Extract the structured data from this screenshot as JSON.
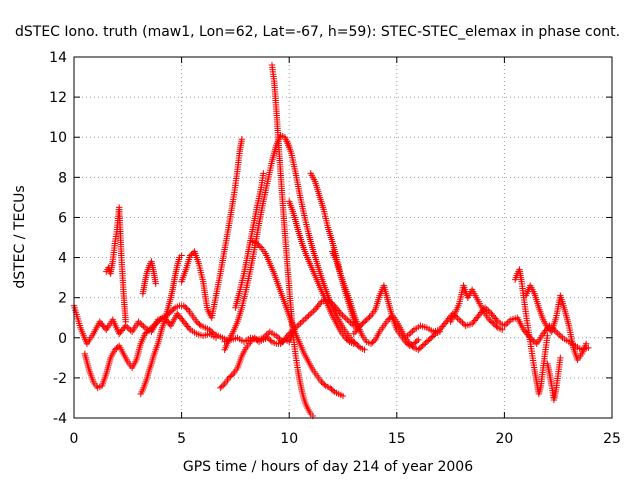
{
  "chart_data": {
    "type": "scatter",
    "title": "dSTEC Iono. truth (maw1, Lon=62, Lat=-67, h=59): STEC-STEC_elemax in phase cont.",
    "xlabel": "GPS time / hours of day 214 of year 2006",
    "ylabel": "dSTEC  / TECUs",
    "xlim": [
      0,
      25
    ],
    "ylim": [
      -4,
      14
    ],
    "xticks": [
      0,
      5,
      10,
      15,
      20,
      25
    ],
    "yticks": [
      -4,
      -2,
      0,
      2,
      4,
      6,
      8,
      10,
      12,
      14
    ],
    "grid": true,
    "marker": "+",
    "series_color": "#ff0000",
    "series": [
      {
        "x": [
          0.0,
          0.3,
          0.6,
          0.9,
          1.2,
          1.5,
          1.8,
          2.1,
          2.4,
          2.7,
          3.0,
          3.3,
          3.6,
          3.9,
          4.2,
          4.5,
          4.8,
          5.1,
          5.4,
          5.7,
          6.0,
          6.3,
          6.6
        ],
        "y": [
          1.6,
          0.5,
          -0.3,
          0.2,
          0.8,
          0.4,
          0.9,
          0.2,
          0.6,
          0.3,
          0.8,
          0.5,
          0.3,
          0.9,
          1.0,
          0.6,
          1.2,
          0.8,
          0.4,
          0.2,
          0.1,
          0.2,
          0.0
        ]
      },
      {
        "x": [
          0.5,
          0.7,
          0.9,
          1.1,
          1.3,
          1.5,
          1.7,
          1.9,
          2.1,
          2.3,
          2.5,
          2.7,
          2.9,
          3.1,
          3.3,
          3.5,
          3.7,
          3.9,
          4.1,
          4.3,
          4.5,
          4.7,
          4.9,
          5.1,
          5.3,
          5.5,
          5.7,
          5.9,
          6.1,
          6.3,
          6.5,
          6.7,
          6.9,
          7.1
        ],
        "y": [
          -0.8,
          -1.6,
          -2.2,
          -2.5,
          -2.4,
          -1.8,
          -1.0,
          -0.6,
          -0.4,
          -0.8,
          -1.2,
          -1.5,
          -1.1,
          -0.3,
          0.2,
          0.4,
          0.6,
          0.8,
          1.0,
          1.1,
          1.3,
          1.5,
          1.6,
          1.6,
          1.4,
          1.1,
          0.8,
          0.6,
          0.5,
          0.4,
          0.2,
          0.1,
          0.0,
          -0.1
        ]
      },
      {
        "x": [
          1.5,
          1.6,
          1.7,
          1.8,
          1.9,
          2.0,
          2.1,
          2.2,
          2.3,
          2.4
        ],
        "y": [
          3.3,
          3.5,
          3.2,
          3.8,
          4.7,
          5.4,
          6.5,
          4.1,
          2.3,
          0.8
        ]
      },
      {
        "x": [
          3.1,
          3.2,
          3.3,
          3.4,
          3.5,
          3.6,
          3.7,
          3.8,
          3.9,
          4.0,
          4.1,
          4.2,
          4.3,
          4.4,
          4.5,
          4.6,
          4.7,
          4.8,
          4.9,
          5.0
        ],
        "y": [
          -2.8,
          -2.6,
          -2.3,
          -2.0,
          -1.6,
          -1.3,
          -0.9,
          -0.6,
          -0.3,
          0.1,
          0.5,
          0.8,
          1.2,
          1.6,
          2.0,
          2.5,
          3.1,
          3.6,
          4.0,
          4.1
        ]
      },
      {
        "x": [
          3.2,
          3.3,
          3.4,
          3.5,
          3.6,
          3.7,
          3.8
        ],
        "y": [
          2.2,
          2.8,
          3.3,
          3.6,
          3.8,
          3.3,
          2.7
        ]
      },
      {
        "x": [
          5.0,
          5.2,
          5.4,
          5.6,
          5.8,
          6.0,
          6.2,
          6.4,
          6.6,
          6.8,
          7.0,
          7.2,
          7.4,
          7.5,
          7.6,
          7.7,
          7.8
        ],
        "y": [
          2.8,
          3.4,
          4.1,
          4.3,
          3.7,
          2.8,
          1.4,
          1.0,
          2.1,
          3.2,
          4.4,
          5.6,
          6.9,
          7.6,
          8.4,
          9.3,
          9.9
        ]
      },
      {
        "x": [
          6.8,
          7.0,
          7.2,
          7.4,
          7.6,
          7.8,
          8.0,
          8.2,
          8.4,
          8.6,
          8.8,
          9.0,
          9.2,
          9.4,
          9.6,
          9.8,
          10.0,
          10.2
        ],
        "y": [
          -2.5,
          -2.3,
          -2.0,
          -1.8,
          -1.5,
          -0.9,
          -0.5,
          -0.2,
          0.0,
          -0.2,
          -0.1,
          0.0,
          -0.2,
          -0.3,
          -0.3,
          -0.1,
          -0.2,
          0.3
        ]
      },
      {
        "x": [
          7.0,
          7.2,
          7.4,
          7.6,
          7.8,
          8.0,
          8.2,
          8.4,
          8.6,
          8.8,
          9.0,
          9.2,
          9.4,
          9.6,
          9.8,
          10.0
        ],
        "y": [
          -0.6,
          -0.1,
          0.3,
          0.8,
          1.5,
          2.4,
          3.4,
          4.5,
          5.7,
          6.8,
          7.8,
          8.8,
          9.6,
          10.1,
          10.0,
          9.5
        ]
      },
      {
        "x": [
          7.0,
          7.3,
          7.6,
          7.9,
          8.2,
          8.5,
          8.8,
          9.1,
          9.4,
          9.7,
          10.0,
          10.3,
          10.6,
          10.9,
          11.2,
          11.5,
          11.8,
          12.1,
          12.4,
          12.7,
          13.0
        ],
        "y": [
          -0.2,
          -0.1,
          0.0,
          -0.2,
          0.0,
          -0.1,
          0.0,
          0.3,
          0.1,
          -0.2,
          0.2,
          0.5,
          0.8,
          1.1,
          1.4,
          1.8,
          1.9,
          1.6,
          1.2,
          0.9,
          0.6
        ]
      },
      {
        "x": [
          7.5,
          7.7,
          7.9,
          8.1,
          8.3,
          8.5,
          8.7,
          8.8
        ],
        "y": [
          1.5,
          2.3,
          3.2,
          4.3,
          5.4,
          6.5,
          7.5,
          8.2
        ]
      },
      {
        "x": [
          8.3,
          8.5,
          8.7,
          8.9,
          9.1,
          9.3,
          9.5,
          9.7,
          9.9,
          10.1,
          10.3,
          10.5,
          10.7,
          10.9,
          11.1,
          11.3,
          11.5,
          11.7,
          11.9,
          12.1,
          12.3,
          12.5
        ],
        "y": [
          4.8,
          4.7,
          4.5,
          4.2,
          3.7,
          3.2,
          2.6,
          2.0,
          1.4,
          0.8,
          0.2,
          -0.3,
          -0.8,
          -1.2,
          -1.6,
          -1.9,
          -2.2,
          -2.4,
          -2.5,
          -2.7,
          -2.8,
          -2.9
        ]
      },
      {
        "x": [
          9.2,
          9.3,
          9.4,
          9.5,
          9.6,
          9.7,
          9.8,
          9.9,
          10.0,
          10.1,
          10.2,
          10.3,
          10.4,
          10.5,
          10.6,
          10.7,
          10.8,
          10.9,
          11.0,
          11.1
        ],
        "y": [
          13.6,
          12.8,
          11.4,
          9.8,
          8.2,
          6.7,
          5.2,
          3.8,
          2.5,
          1.2,
          0.0,
          -0.9,
          -1.6,
          -2.2,
          -2.7,
          -3.1,
          -3.4,
          -3.6,
          -3.8,
          -3.9
        ]
      },
      {
        "x": [
          9.9,
          10.1,
          10.3,
          10.5,
          10.7,
          10.9,
          11.1,
          11.3,
          11.5,
          11.7,
          11.9,
          12.1,
          12.3,
          12.5,
          12.7,
          12.9,
          13.1,
          13.3,
          13.5
        ],
        "y": [
          9.8,
          9.2,
          8.2,
          7.1,
          6.1,
          5.2,
          4.4,
          3.7,
          3.0,
          2.4,
          1.8,
          1.3,
          0.9,
          0.5,
          0.2,
          -0.1,
          -0.3,
          -0.5,
          -0.6
        ]
      },
      {
        "x": [
          10.0,
          10.2,
          10.4,
          10.6,
          10.8,
          11.0,
          11.2,
          11.4,
          11.6,
          11.8,
          12.0,
          12.2,
          12.4,
          12.6,
          12.8,
          13.0
        ],
        "y": [
          6.8,
          6.2,
          5.4,
          4.7,
          4.1,
          3.6,
          3.1,
          2.6,
          2.1,
          1.6,
          1.1,
          0.7,
          0.3,
          0.0,
          -0.2,
          -0.3
        ]
      },
      {
        "x": [
          11.0,
          11.2,
          11.4,
          11.6,
          11.8,
          12.0,
          12.2,
          12.4,
          12.6,
          12.8,
          13.0,
          13.2
        ],
        "y": [
          8.2,
          7.8,
          7.1,
          6.4,
          5.5,
          4.8,
          4.0,
          3.1,
          2.3,
          1.6,
          0.9,
          0.4
        ]
      },
      {
        "x": [
          12.0,
          12.2,
          12.4,
          12.6,
          12.8,
          13.0,
          13.2,
          13.4,
          13.6,
          13.8,
          14.0,
          14.2,
          14.4,
          14.6,
          14.8,
          15.0,
          15.2,
          15.4,
          15.6,
          15.8,
          16.0,
          16.2,
          16.4,
          16.6,
          16.8,
          17.0
        ],
        "y": [
          4.3,
          3.8,
          3.1,
          2.5,
          1.9,
          1.2,
          0.6,
          0.1,
          -0.2,
          -0.3,
          -0.1,
          0.3,
          0.6,
          0.9,
          1.1,
          0.8,
          0.4,
          0.0,
          -0.3,
          -0.5,
          -0.6,
          -0.4,
          -0.2,
          0.0,
          0.2,
          0.3
        ]
      },
      {
        "x": [
          13.0,
          13.2,
          13.4,
          13.6,
          13.8,
          14.0,
          14.2,
          14.4,
          14.6,
          14.8,
          15.0,
          15.2,
          15.4,
          15.6,
          15.8,
          16.0
        ],
        "y": [
          0.2,
          0.5,
          0.7,
          0.9,
          1.1,
          1.4,
          2.1,
          2.6,
          1.8,
          1.0,
          0.4,
          0.1,
          -0.2,
          -0.4,
          -0.3,
          -0.1
        ]
      },
      {
        "x": [
          15.5,
          15.8,
          16.1,
          16.4,
          16.7,
          17.0,
          17.3,
          17.6,
          17.9,
          18.2,
          18.5,
          18.8,
          19.1,
          19.4,
          19.7,
          20.0,
          20.3,
          20.6,
          20.9,
          21.2,
          21.5,
          21.8,
          22.1,
          22.4,
          22.7,
          23.0,
          23.3,
          23.6,
          23.9
        ],
        "y": [
          0.1,
          0.4,
          0.6,
          0.5,
          0.3,
          0.4,
          0.8,
          1.2,
          0.9,
          0.6,
          0.7,
          1.1,
          1.5,
          1.2,
          0.8,
          0.6,
          0.9,
          1.0,
          0.4,
          0.0,
          -0.3,
          0.2,
          0.6,
          0.3,
          0.0,
          -0.2,
          -0.4,
          -0.6,
          -0.5
        ]
      },
      {
        "x": [
          17.5,
          17.7,
          17.9,
          18.1,
          18.3,
          18.5,
          18.7,
          18.9,
          19.1,
          19.3,
          19.5,
          19.7,
          19.9
        ],
        "y": [
          0.8,
          1.2,
          1.7,
          2.6,
          2.0,
          2.4,
          2.0,
          1.6,
          1.2,
          0.9,
          0.7,
          0.5,
          0.4
        ]
      },
      {
        "x": [
          20.5,
          20.6,
          20.7,
          20.8,
          20.9,
          21.0,
          21.1,
          21.2,
          21.3,
          21.4,
          21.5,
          21.6,
          21.7,
          21.8,
          21.9,
          22.0
        ],
        "y": [
          2.9,
          3.2,
          3.4,
          2.8,
          2.0,
          1.2,
          0.5,
          -0.2,
          -0.9,
          -1.6,
          -2.2,
          -2.8,
          -2.4,
          -1.5,
          -0.7,
          0.1
        ]
      },
      {
        "x": [
          21.0,
          21.2,
          21.4,
          21.6,
          21.8,
          22.0,
          22.2,
          22.4,
          22.6,
          22.8,
          23.0,
          23.2,
          23.4,
          23.6,
          23.8
        ],
        "y": [
          2.1,
          2.6,
          2.2,
          1.5,
          0.9,
          0.5,
          0.3,
          1.0,
          2.1,
          1.4,
          0.6,
          -0.5,
          -1.1,
          -0.8,
          -0.3
        ]
      },
      {
        "x": [
          22.0,
          22.1,
          22.2,
          22.3,
          22.4,
          22.5,
          22.6
        ],
        "y": [
          -1.3,
          -1.8,
          -2.4,
          -3.1,
          -2.6,
          -1.8,
          -1.0
        ]
      }
    ]
  }
}
